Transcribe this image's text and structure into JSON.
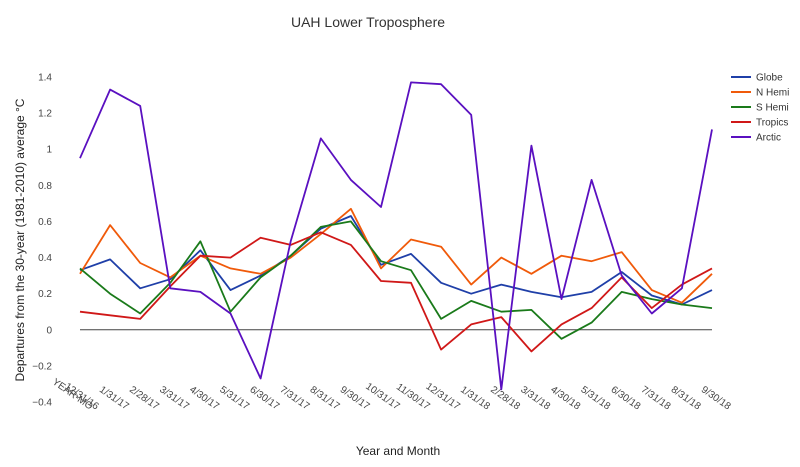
{
  "chart_data": {
    "type": "line",
    "title": "UAH Lower Troposphere",
    "xlabel": "Year and Month",
    "ylabel": "Departures from the 30-year (1981-2010) average °C",
    "x_axis_origin_label": "YEAR-MO",
    "categories": [
      "12/31/16",
      "1/31/17",
      "2/28/17",
      "3/31/17",
      "4/30/17",
      "5/31/17",
      "6/30/17",
      "7/31/17",
      "8/31/17",
      "9/30/17",
      "10/31/17",
      "11/30/17",
      "12/31/17",
      "1/31/18",
      "2/28/18",
      "3/31/18",
      "4/30/18",
      "5/31/18",
      "6/30/18",
      "7/31/18",
      "8/31/18",
      "9/30/18"
    ],
    "ylim": [
      -0.4,
      1.4
    ],
    "yticks": [
      -0.4,
      -0.2,
      0,
      0.2,
      0.4,
      0.6,
      0.8,
      1,
      1.2,
      1.4
    ],
    "ytick_labels": [
      "−0.4",
      "−0.2",
      "0",
      "0.2",
      "0.4",
      "0.6",
      "0.8",
      "1",
      "1.2",
      "1.4"
    ],
    "legend_position": "top-right",
    "series": [
      {
        "name": "Globe",
        "color": "#1f3fa8",
        "values": [
          0.33,
          0.39,
          0.23,
          0.28,
          0.44,
          0.22,
          0.3,
          0.41,
          0.56,
          0.63,
          0.36,
          0.42,
          0.26,
          0.2,
          0.25,
          0.21,
          0.18,
          0.21,
          0.32,
          0.19,
          0.14,
          0.22
        ]
      },
      {
        "name": "N Hemi",
        "color": "#f05a0a",
        "values": [
          0.31,
          0.58,
          0.37,
          0.29,
          0.41,
          0.34,
          0.31,
          0.4,
          0.53,
          0.67,
          0.34,
          0.5,
          0.46,
          0.25,
          0.4,
          0.31,
          0.41,
          0.38,
          0.43,
          0.22,
          0.15,
          0.31
        ]
      },
      {
        "name": "S Hemi",
        "color": "#1a7a1a",
        "values": [
          0.34,
          0.2,
          0.09,
          0.26,
          0.49,
          0.1,
          0.29,
          0.41,
          0.57,
          0.6,
          0.38,
          0.33,
          0.06,
          0.16,
          0.1,
          0.11,
          -0.05,
          0.04,
          0.21,
          0.17,
          0.14,
          0.12
        ]
      },
      {
        "name": "Tropics",
        "color": "#d01818",
        "values": [
          0.1,
          0.08,
          0.06,
          0.24,
          0.41,
          0.4,
          0.51,
          0.47,
          0.54,
          0.47,
          0.27,
          0.26,
          -0.11,
          0.03,
          0.07,
          -0.12,
          0.03,
          0.12,
          0.29,
          0.12,
          0.25,
          0.34
        ]
      },
      {
        "name": "Arctic",
        "color": "#5a10c0",
        "values": [
          0.95,
          1.33,
          1.24,
          0.23,
          0.21,
          0.09,
          -0.27,
          0.49,
          1.06,
          0.83,
          0.68,
          1.37,
          1.36,
          1.19,
          -0.33,
          1.02,
          0.17,
          0.83,
          0.3,
          0.09,
          0.23,
          1.11
        ]
      }
    ]
  }
}
